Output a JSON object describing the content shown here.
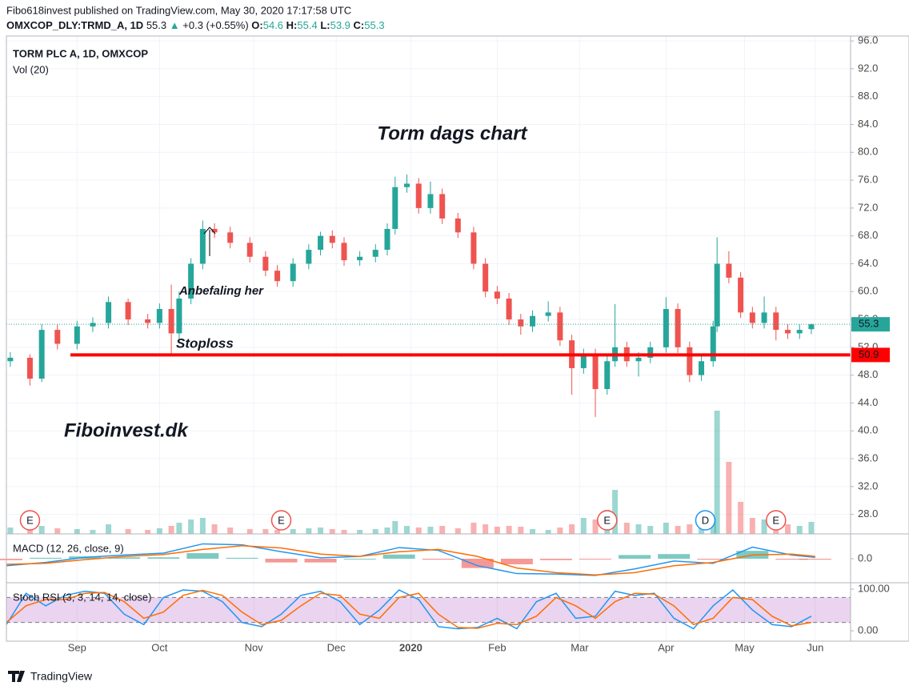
{
  "header": {
    "publisher": "Fibo618invest published on TradingView.com, May 30, 2020 17:17:58 UTC",
    "symbol": "OMXCOP_DLY:TRMD_A, 1D",
    "last": 55.3,
    "arrow": "▲",
    "change": "+0.3 (+0.55%)",
    "open_label": "O:",
    "open": 54.6,
    "high_label": "H:",
    "high": 55.4,
    "low_label": "L:",
    "low": 53.9,
    "close_label": "C:",
    "close": 55.3
  },
  "chart_data": {
    "type": "candlestick",
    "title": "TORM PLC A, 1D, OMXCOP",
    "volume_title": "Vol (20)",
    "up_color": "#26a69a",
    "down_color": "#ef5350",
    "x": [
      1,
      6,
      9,
      13,
      18,
      22,
      26,
      31,
      36,
      39,
      42,
      44,
      47,
      50,
      53,
      57,
      62,
      66,
      69,
      73,
      77,
      80,
      83,
      86,
      90,
      94,
      97,
      99,
      102,
      105,
      108,
      111,
      115,
      119,
      122,
      125,
      128,
      131,
      134,
      138,
      141,
      144,
      147,
      150,
      153,
      155,
      158,
      161,
      164,
      168,
      171,
      174,
      177,
      180,
      181,
      184,
      187,
      190,
      193,
      196,
      199,
      202,
      205
    ],
    "open": [
      50,
      50.5,
      47.5,
      54.5,
      52.5,
      55,
      55.5,
      58.5,
      56,
      55.5,
      57.5,
      54,
      59,
      64,
      69,
      68.5,
      67,
      65,
      63,
      61.5,
      64,
      66,
      68,
      67,
      64.5,
      65,
      66,
      69,
      75,
      75.5,
      72,
      74,
      70.5,
      68.5,
      64,
      60,
      59,
      56,
      55,
      56.5,
      57,
      53,
      49,
      51,
      46,
      50,
      52,
      50,
      50.5,
      52,
      57.5,
      52,
      48,
      50,
      55,
      64,
      62,
      57,
      55.5,
      57,
      54.5,
      54,
      54.6
    ],
    "high": [
      51.3,
      51,
      55.3,
      55.3,
      55.8,
      56.3,
      59.3,
      59,
      56.8,
      58.3,
      61,
      60,
      64.8,
      70.2,
      69.8,
      69.3,
      67.8,
      65.8,
      63.8,
      64.8,
      66.8,
      68.6,
      68.8,
      67.8,
      65.8,
      66.8,
      69.8,
      76.5,
      76.8,
      76.3,
      75.8,
      74.8,
      71.3,
      69.3,
      64.8,
      60.8,
      59.8,
      56.8,
      57.3,
      58.6,
      57.8,
      53.8,
      51.8,
      51.8,
      50.8,
      58.2,
      52.8,
      51.3,
      52.8,
      59.2,
      58.3,
      52.8,
      50.8,
      55.8,
      67.8,
      65.8,
      62.8,
      57.8,
      59.3,
      57.8,
      55.3,
      55.3,
      55.4
    ],
    "low": [
      49.2,
      46.5,
      47,
      51.7,
      51.7,
      54.2,
      54.7,
      55.2,
      54.7,
      54.7,
      51,
      53.2,
      58.2,
      63.2,
      67.7,
      66.2,
      64.2,
      62.2,
      60.7,
      60.7,
      63.2,
      65.2,
      66.2,
      63.7,
      63.7,
      64.2,
      65.2,
      68.2,
      74.2,
      71.2,
      71.2,
      69.7,
      67.7,
      63.2,
      59.2,
      58.2,
      55.2,
      53.8,
      54.2,
      55.7,
      52.2,
      45.2,
      48.2,
      42,
      45.2,
      49.2,
      49.2,
      47.8,
      49.7,
      51.2,
      51.2,
      47,
      47.2,
      49.2,
      54.2,
      61.2,
      56.2,
      54.7,
      54.7,
      53,
      53.2,
      53.2,
      53.9
    ],
    "close": [
      50.5,
      47.5,
      54.5,
      52.5,
      55,
      55.5,
      58.5,
      56,
      55.5,
      57.5,
      54,
      59,
      64,
      69,
      68.5,
      67,
      65,
      63,
      61.5,
      64,
      66,
      68,
      67,
      64.5,
      65,
      66,
      69,
      75,
      75.5,
      72,
      74,
      70.5,
      68.5,
      64,
      60,
      59,
      56,
      55,
      56.5,
      57,
      53,
      49,
      51,
      46,
      50,
      52,
      50,
      50.5,
      52,
      57.5,
      52,
      48,
      50,
      55,
      64,
      62,
      57,
      55.5,
      57,
      54.5,
      54,
      54.5,
      55.3
    ],
    "volume": [
      8,
      6,
      10,
      7,
      6,
      5,
      12,
      6,
      5,
      7,
      10,
      14,
      18,
      20,
      12,
      8,
      6,
      6,
      5,
      6,
      7,
      8,
      6,
      5,
      5,
      6,
      8,
      16,
      10,
      8,
      9,
      10,
      7,
      14,
      12,
      9,
      10,
      9,
      6,
      5,
      8,
      12,
      20,
      18,
      30,
      55,
      14,
      12,
      10,
      14,
      10,
      12,
      11,
      20,
      154,
      90,
      40,
      20,
      18,
      14,
      12,
      10,
      15
    ],
    "xlim": [
      0,
      215
    ],
    "xticks": [
      {
        "value": 18,
        "label": "Sep"
      },
      {
        "value": 39,
        "label": "Oct"
      },
      {
        "value": 63,
        "label": "Nov"
      },
      {
        "value": 84,
        "label": "Dec"
      },
      {
        "value": 103,
        "label": "2020"
      },
      {
        "value": 125,
        "label": "Feb"
      },
      {
        "value": 146,
        "label": "Mar"
      },
      {
        "value": 168,
        "label": "Apr"
      },
      {
        "value": 188,
        "label": "May"
      },
      {
        "value": 206,
        "label": "Jun"
      }
    ],
    "ylim": [
      25.2,
      96.7
    ],
    "yticks": [
      {
        "value": 28,
        "label": "28.0"
      },
      {
        "value": 32,
        "label": "32.0"
      },
      {
        "value": 36,
        "label": "36.0"
      },
      {
        "value": 40,
        "label": "40.0"
      },
      {
        "value": 44,
        "label": "44.0"
      },
      {
        "value": 48,
        "label": "48.0"
      },
      {
        "value": 52,
        "label": "52.0"
      },
      {
        "value": 56,
        "label": "56.0"
      },
      {
        "value": 60,
        "label": "60.0"
      },
      {
        "value": 64,
        "label": "64.0"
      },
      {
        "value": 68,
        "label": "68.0"
      },
      {
        "value": 72,
        "label": "72.0"
      },
      {
        "value": 76,
        "label": "76.0"
      },
      {
        "value": 80,
        "label": "80.0"
      },
      {
        "value": 84,
        "label": "84.0"
      },
      {
        "value": 88,
        "label": "88.0"
      },
      {
        "value": 92,
        "label": "92.0"
      },
      {
        "value": 96,
        "label": "96.0"
      }
    ],
    "grid": true,
    "last_price": 55.3,
    "last_price_color": "#26a69a",
    "stoploss": 50.9,
    "stoploss_color": "#ff0000",
    "annotations": {
      "title": "Torm dags chart",
      "entry": "Anbefaling her",
      "stop": "Stoploss",
      "brand": "Fiboinvest.dk"
    },
    "events": [
      {
        "label": "E",
        "x": 6
      },
      {
        "label": "E",
        "x": 70
      },
      {
        "label": "E",
        "x": 153
      },
      {
        "label": "D",
        "x": 178
      },
      {
        "label": "E",
        "x": 196
      }
    ],
    "macd": {
      "title": "MACD (12, 26, close, 9)",
      "ylim": [
        -5,
        5
      ],
      "yticks": [
        {
          "value": 0,
          "label": "0.0"
        }
      ],
      "x": [
        0,
        10,
        20,
        30,
        40,
        50,
        60,
        70,
        80,
        90,
        100,
        110,
        120,
        130,
        140,
        150,
        160,
        170,
        180,
        190,
        200,
        206
      ],
      "histogram": [
        -0.3,
        0.2,
        0.5,
        0.3,
        0.3,
        1.2,
        0.2,
        -0.8,
        -0.8,
        0,
        0.9,
        -0.2,
        -2,
        -1.2,
        -0.3,
        -0.1,
        0.8,
        1,
        -0.2,
        1.7,
        -0.2,
        -0.2
      ],
      "series": [
        {
          "color": "#2196f3",
          "values": [
            -1.5,
            -0.8,
            0.3,
            0.8,
            1.2,
            3.2,
            3,
            1.5,
            0.2,
            0.5,
            2.4,
            1.8,
            -1.5,
            -3.2,
            -3.3,
            -3.6,
            -2.2,
            -0.5,
            -1,
            2.5,
            0.8,
            0.3
          ]
        },
        {
          "color": "#ff6d00",
          "values": [
            -1.2,
            -1,
            -0.2,
            0.5,
            0.9,
            2,
            2.8,
            2.3,
            1,
            0.5,
            1.5,
            2,
            0.5,
            -2,
            -3,
            -3.5,
            -3,
            -1.5,
            -0.8,
            0.8,
            1,
            0.5
          ]
        }
      ]
    },
    "stoch_rsi": {
      "title": "Stoch RSI (3, 3, 14, 14, close)",
      "ylim": [
        -23,
        113.5
      ],
      "band": [
        20,
        80
      ],
      "yticks": [
        {
          "value": 0,
          "label": "0.00"
        },
        {
          "value": 100,
          "label": "100.00"
        }
      ],
      "x": [
        0,
        5,
        10,
        15,
        20,
        25,
        30,
        35,
        40,
        45,
        50,
        55,
        60,
        65,
        70,
        75,
        80,
        85,
        90,
        95,
        100,
        105,
        110,
        115,
        120,
        125,
        130,
        135,
        140,
        145,
        150,
        155,
        160,
        165,
        170,
        175,
        180,
        185,
        190,
        195,
        200,
        205
      ],
      "series": [
        {
          "color": "#2196f3",
          "values": [
            15,
            90,
            60,
            85,
            95,
            90,
            40,
            15,
            80,
            98,
            95,
            70,
            20,
            10,
            40,
            85,
            95,
            70,
            15,
            50,
            98,
            75,
            10,
            5,
            8,
            30,
            5,
            70,
            90,
            30,
            35,
            95,
            85,
            90,
            30,
            5,
            60,
            98,
            50,
            15,
            10,
            35
          ]
        },
        {
          "color": "#ff6d00",
          "values": [
            20,
            60,
            75,
            75,
            90,
            92,
            70,
            30,
            45,
            85,
            97,
            85,
            45,
            15,
            25,
            60,
            90,
            85,
            40,
            30,
            80,
            90,
            40,
            8,
            6,
            18,
            15,
            35,
            80,
            60,
            30,
            70,
            90,
            88,
            60,
            15,
            30,
            80,
            75,
            35,
            12,
            20
          ]
        }
      ]
    }
  },
  "footer": {
    "brand": "TradingView"
  }
}
